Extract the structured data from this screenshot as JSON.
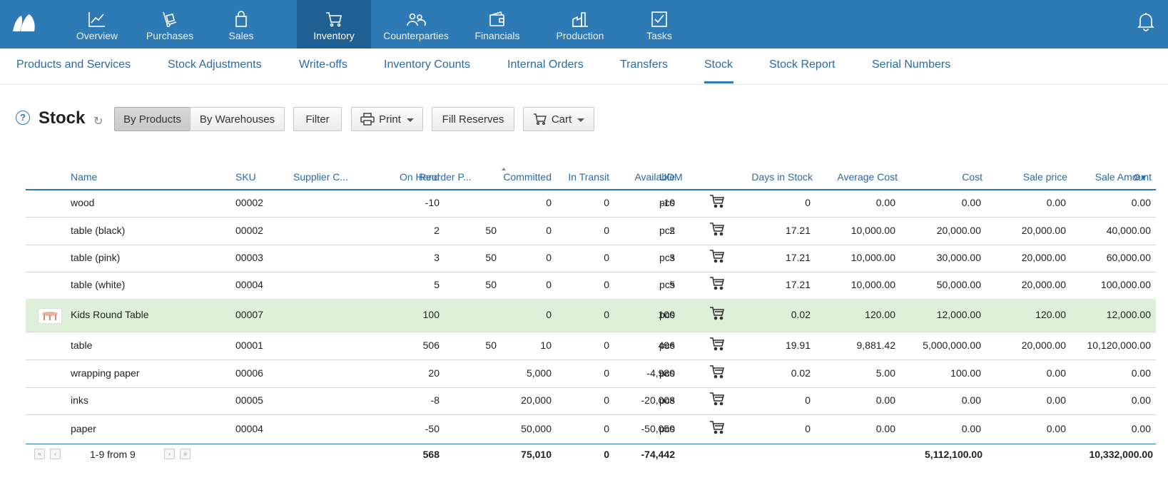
{
  "colors": {
    "accent": "#2d7ab5",
    "nav_active": "#1f5f92",
    "highlight_row": "#def0da",
    "link": "#2b6aa3"
  },
  "topnav": {
    "items": [
      {
        "label": "Overview",
        "icon": "chart-line-icon"
      },
      {
        "label": "Purchases",
        "icon": "hand-truck-icon"
      },
      {
        "label": "Sales",
        "icon": "shopping-bag-icon"
      },
      {
        "label": "Inventory",
        "icon": "cart-icon",
        "active": true
      },
      {
        "label": "Counterparties",
        "icon": "people-icon"
      },
      {
        "label": "Financials",
        "icon": "wallet-icon"
      },
      {
        "label": "Production",
        "icon": "factory-icon"
      },
      {
        "label": "Tasks",
        "icon": "checkbox-icon"
      }
    ],
    "notifications_icon": "bell-icon"
  },
  "subnav": {
    "items": [
      "Products and Services",
      "Stock Adjustments",
      "Write-offs",
      "Inventory Counts",
      "Internal Orders",
      "Transfers",
      "Stock",
      "Stock Report",
      "Serial Numbers"
    ],
    "active": "Stock"
  },
  "toolbar": {
    "help": "?",
    "title": "Stock",
    "by_products": "By Products",
    "by_warehouses": "By Warehouses",
    "filter": "Filter",
    "print": "Print",
    "fill_reserves": "Fill Reserves",
    "cart": "Cart"
  },
  "table": {
    "columns": {
      "name": "Name",
      "sku": "SKU",
      "supplier": "Supplier C...",
      "on_hand": "On Hand",
      "reorder": "Reorder P...",
      "committed": "Committed",
      "in_transit": "In Transit",
      "available": "Available",
      "uom": "UOM",
      "days": "Days in Stock",
      "avg_cost": "Average Cost",
      "cost": "Cost",
      "sale_price": "Sale price",
      "sale_amount": "Sale Amount"
    },
    "rows": [
      {
        "name": "wood",
        "sku": "00002",
        "on_hand": "-10",
        "reorder": "",
        "committed": "0",
        "in_transit": "0",
        "available": "-10",
        "uom": "pcs",
        "days": "0",
        "avg_cost": "0.00",
        "cost": "0.00",
        "sale_price": "0.00",
        "sale_amount": "0.00"
      },
      {
        "name": "table (black)",
        "sku": "00002",
        "on_hand": "2",
        "reorder": "50",
        "committed": "0",
        "in_transit": "0",
        "available": "2",
        "uom": "pcs",
        "days": "17.21",
        "avg_cost": "10,000.00",
        "cost": "20,000.00",
        "sale_price": "20,000.00",
        "sale_amount": "40,000.00"
      },
      {
        "name": "table (pink)",
        "sku": "00003",
        "on_hand": "3",
        "reorder": "50",
        "committed": "0",
        "in_transit": "0",
        "available": "3",
        "uom": "pcs",
        "days": "17.21",
        "avg_cost": "10,000.00",
        "cost": "30,000.00",
        "sale_price": "20,000.00",
        "sale_amount": "60,000.00"
      },
      {
        "name": "table (white)",
        "sku": "00004",
        "on_hand": "5",
        "reorder": "50",
        "committed": "0",
        "in_transit": "0",
        "available": "5",
        "uom": "pcs",
        "days": "17.21",
        "avg_cost": "10,000.00",
        "cost": "50,000.00",
        "sale_price": "20,000.00",
        "sale_amount": "100,000.00"
      },
      {
        "name": "Kids Round Table",
        "sku": "00007",
        "on_hand": "100",
        "reorder": "",
        "committed": "0",
        "in_transit": "0",
        "available": "100",
        "uom": "pcs",
        "days": "0.02",
        "avg_cost": "120.00",
        "cost": "12,000.00",
        "sale_price": "120.00",
        "sale_amount": "12,000.00",
        "highlight": true,
        "thumbnail": true
      },
      {
        "name": "table",
        "sku": "00001",
        "on_hand": "506",
        "reorder": "50",
        "committed": "10",
        "in_transit": "0",
        "available": "496",
        "uom": "pcs",
        "days": "19.91",
        "avg_cost": "9,881.42",
        "cost": "5,000,000.00",
        "sale_price": "20,000.00",
        "sale_amount": "10,120,000.00"
      },
      {
        "name": "wrapping paper",
        "sku": "00006",
        "on_hand": "20",
        "reorder": "",
        "committed": "5,000",
        "in_transit": "0",
        "available": "-4,980",
        "uom": "pcs",
        "days": "0.02",
        "avg_cost": "5.00",
        "cost": "100.00",
        "sale_price": "0.00",
        "sale_amount": "0.00"
      },
      {
        "name": "inks",
        "sku": "00005",
        "on_hand": "-8",
        "reorder": "",
        "committed": "20,000",
        "in_transit": "0",
        "available": "-20,008",
        "uom": "pcs",
        "days": "0",
        "avg_cost": "0.00",
        "cost": "0.00",
        "sale_price": "0.00",
        "sale_amount": "0.00"
      },
      {
        "name": "paper",
        "sku": "00004",
        "on_hand": "-50",
        "reorder": "",
        "committed": "50,000",
        "in_transit": "0",
        "available": "-50,050",
        "uom": "pcs",
        "days": "0",
        "avg_cost": "0.00",
        "cost": "0.00",
        "sale_price": "0.00",
        "sale_amount": "0.00"
      }
    ],
    "footer": {
      "pagination": "1-9 from 9",
      "on_hand": "568",
      "committed": "75,010",
      "in_transit": "0",
      "available": "-74,442",
      "cost": "5,112,100.00",
      "sale_amount": "10,332,000.00"
    }
  }
}
